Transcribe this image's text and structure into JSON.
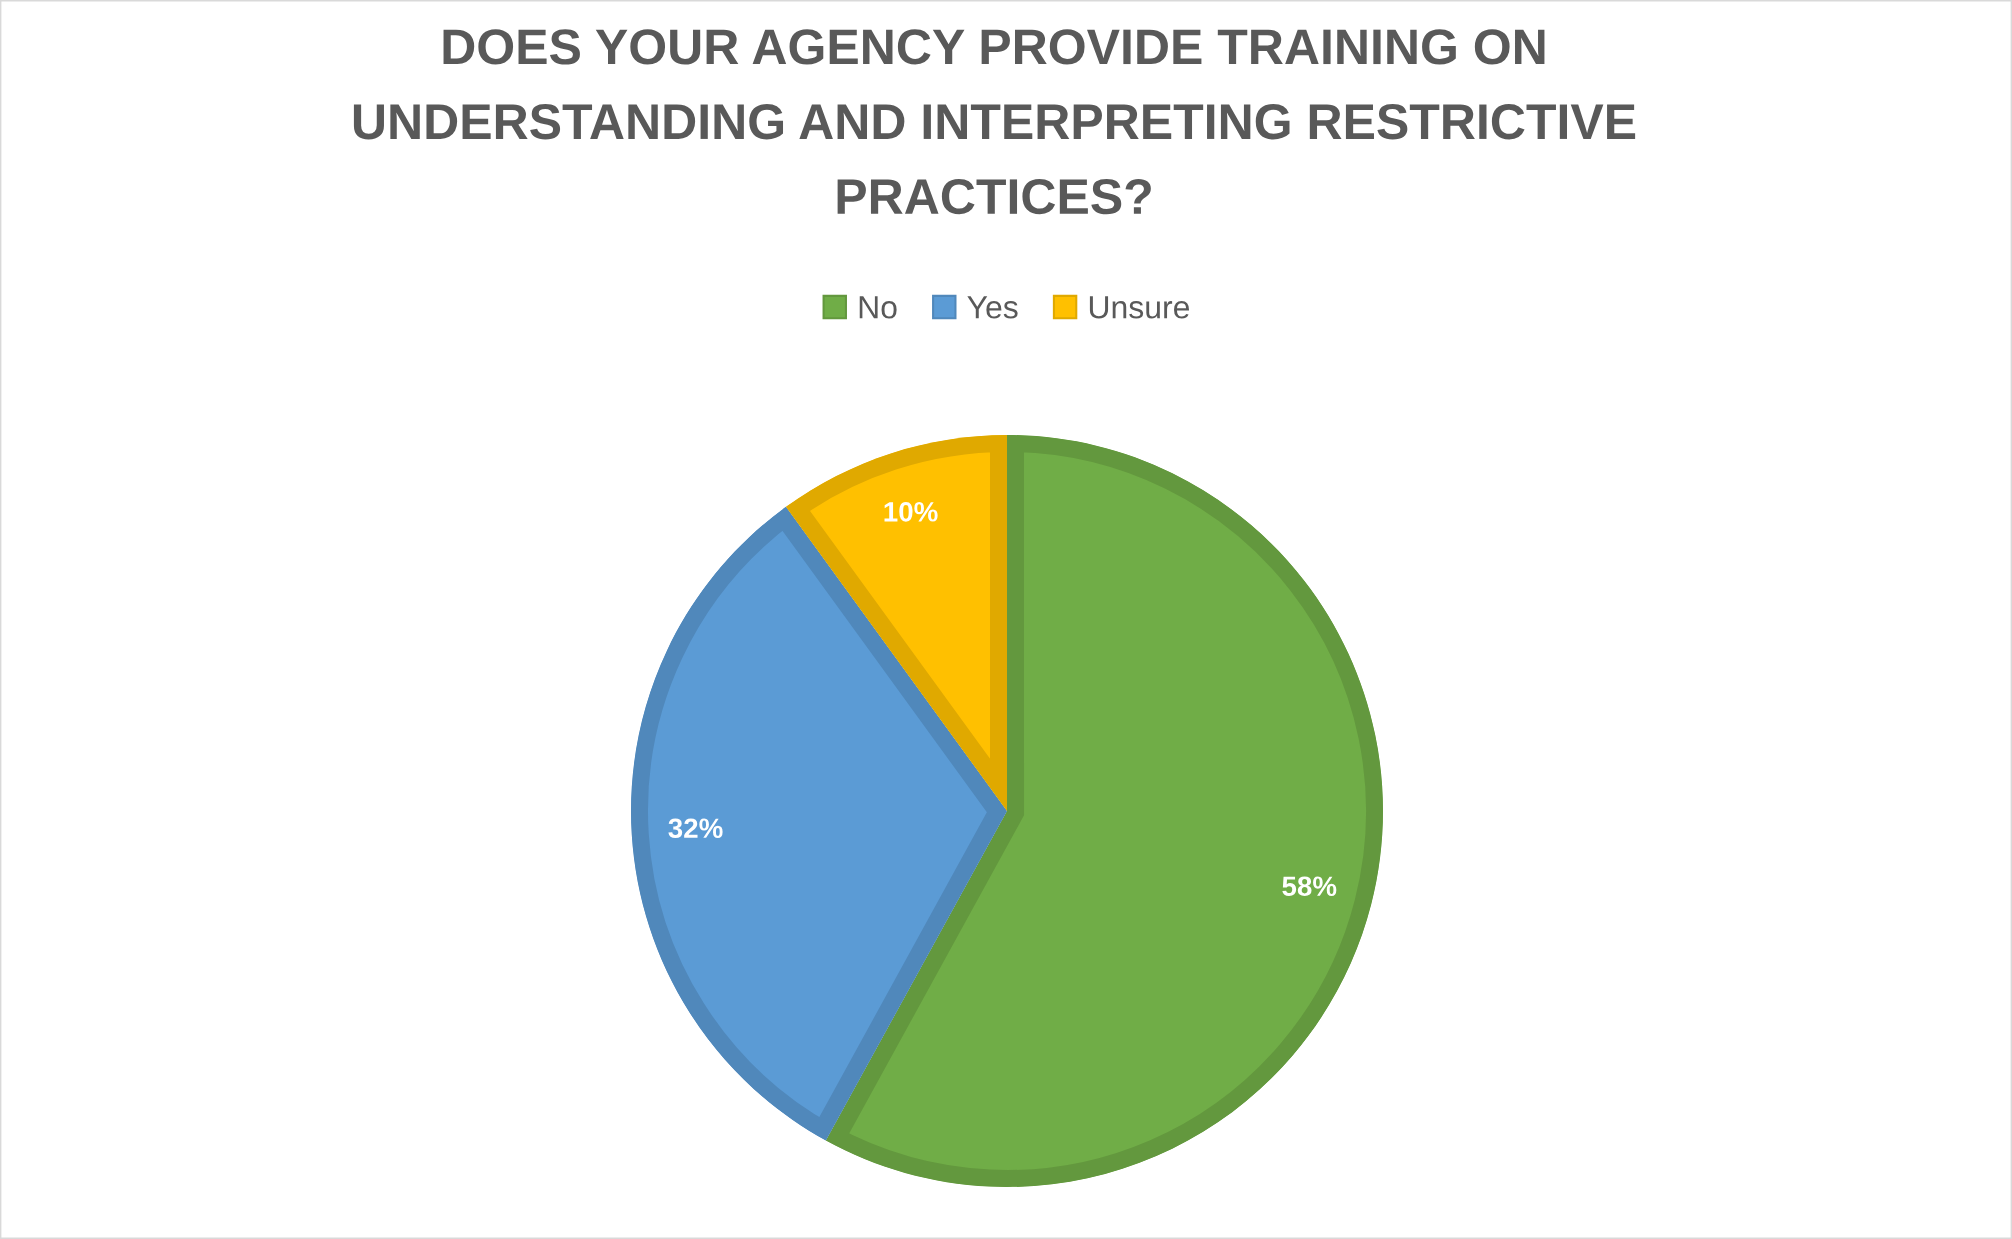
{
  "chart_data": {
    "type": "pie",
    "title": "DOES YOUR AGENCY PROVIDE TRAINING ON UNDERSTANDING AND INTERPRETING RESTRICTIVE PRACTICES?",
    "categories": [
      "No",
      "Yes",
      "Unsure"
    ],
    "values": [
      58,
      32,
      10
    ],
    "value_labels": [
      "58%",
      "32%",
      "10%"
    ],
    "colors": [
      "#70ad47",
      "#5b9bd5",
      "#ffc000"
    ],
    "legend": "top"
  }
}
